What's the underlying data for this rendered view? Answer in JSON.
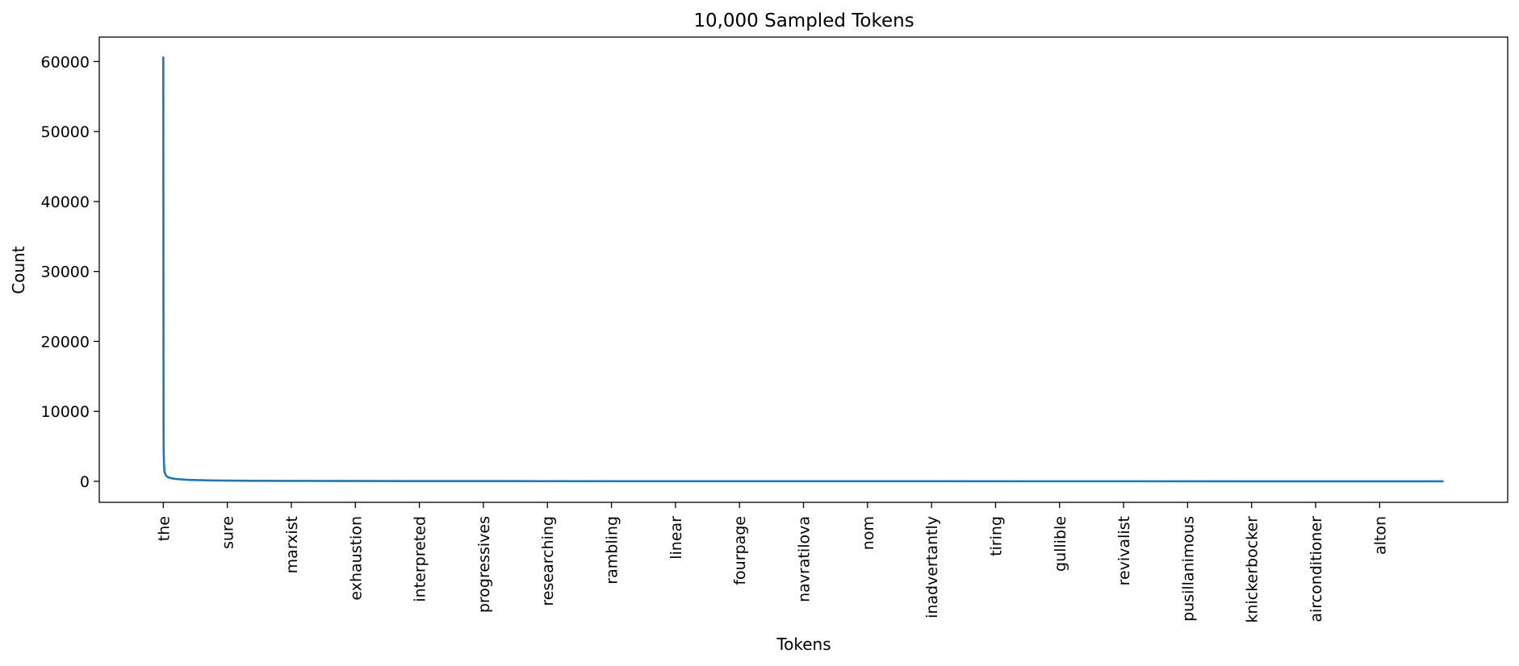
{
  "chart_data": {
    "type": "line",
    "title": "10,000 Sampled Tokens",
    "xlabel": "Tokens",
    "ylabel": "Count",
    "ylim": [
      -3000,
      63500
    ],
    "yticks": [
      0,
      10000,
      20000,
      30000,
      40000,
      50000,
      60000
    ],
    "x_tick_labels": [
      "the",
      "sure",
      "marxist",
      "exhaustion",
      "interpreted",
      "progressives",
      "researching",
      "rambling",
      "linear",
      "fourpage",
      "navratilova",
      "nom",
      "inadvertantly",
      "tiring",
      "gullible",
      "revivalist",
      "pusillanimous",
      "knickerbocker",
      "airconditioner",
      "alton"
    ],
    "x_tick_positions": [
      0,
      500,
      1000,
      1500,
      2000,
      2500,
      3000,
      3500,
      4000,
      4500,
      5000,
      5500,
      6000,
      6500,
      7000,
      7500,
      8000,
      8500,
      9000,
      9500
    ],
    "xlim": [
      -500,
      10500
    ],
    "grid": false,
    "series": [
      {
        "color": "#1f77b4",
        "x": [
          0,
          1,
          2,
          3,
          5,
          8,
          12,
          20,
          35,
          60,
          100,
          200,
          400,
          700,
          1000,
          2000,
          3000,
          5000,
          7000,
          9999
        ],
        "y": [
          60700,
          30000,
          8000,
          4500,
          2800,
          1700,
          1200,
          850,
          600,
          450,
          330,
          200,
          120,
          80,
          60,
          35,
          25,
          15,
          10,
          8
        ]
      }
    ]
  }
}
